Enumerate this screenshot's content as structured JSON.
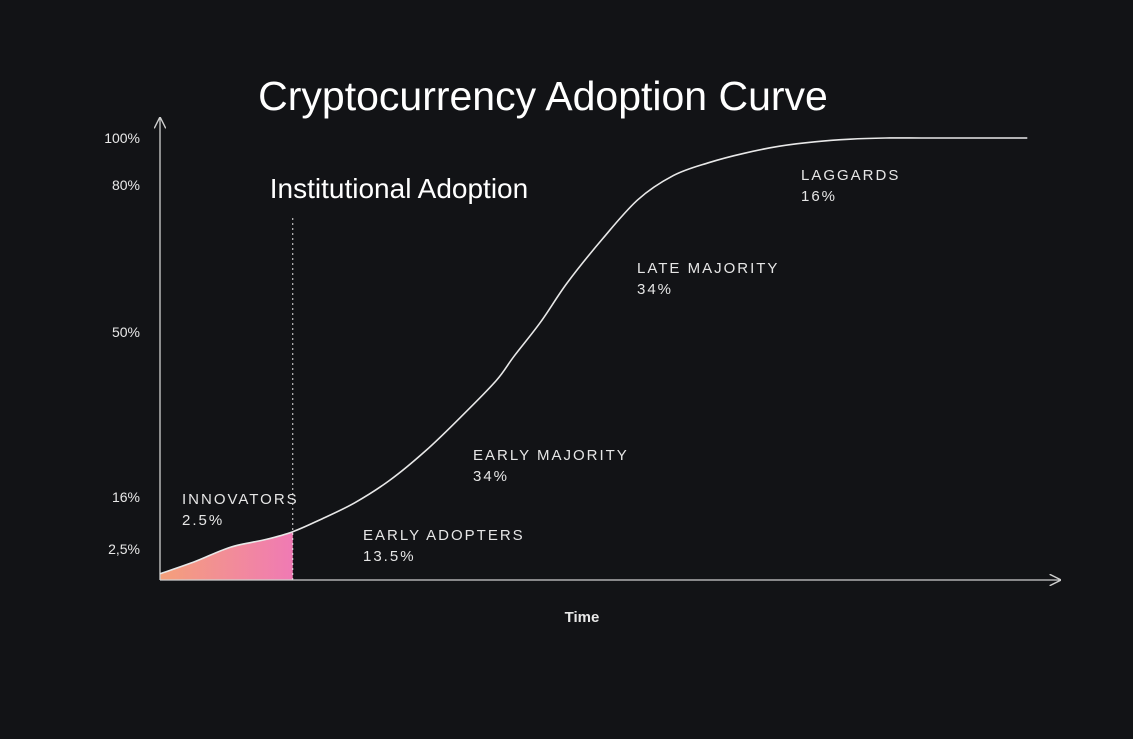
{
  "chart_data": {
    "type": "line",
    "title": "Cryptocurrency Adoption Curve",
    "xlabel": "Time",
    "ylabel": "",
    "y_ticks": [
      "100%",
      "80%",
      "50%",
      "16%",
      "2,5%"
    ],
    "y_tick_values": [
      100,
      80,
      50,
      16,
      2.5
    ],
    "ylim": [
      0,
      100
    ],
    "xlim": [
      0,
      100
    ],
    "series": [
      {
        "x": [
          0,
          4,
          8,
          12,
          15,
          18,
          22,
          26,
          30,
          34,
          38,
          40,
          43,
          46,
          50,
          54,
          58,
          62,
          66,
          70,
          74,
          78,
          82,
          86,
          90,
          94,
          98
        ],
        "y": [
          0.5,
          1.5,
          3,
          5,
          7,
          10,
          14.5,
          19.5,
          25.5,
          32.5,
          40,
          45,
          52,
          60,
          69,
          77,
          84,
          89.5,
          93.5,
          96.5,
          98.4,
          99.5,
          100,
          100,
          100,
          100,
          100
        ]
      }
    ],
    "segments": [
      {
        "name": "INNOVATORS",
        "share": "2.5%"
      },
      {
        "name": "EARLY ADOPTERS",
        "share": "13.5%"
      },
      {
        "name": "EARLY MAJORITY",
        "share": "34%"
      },
      {
        "name": "LATE MAJORITY",
        "share": "34%"
      },
      {
        "name": "LAGGARDS",
        "share": "16%"
      }
    ],
    "annotations": [
      {
        "text": "Institutional Adoption",
        "x": 15
      }
    ],
    "shaded_region": {
      "x_start": 0,
      "x_end": 15,
      "color_start": "#f4a07a",
      "color_end": "#f07ab4"
    },
    "colors": {
      "background": "#121316",
      "curve": "#e8e8e8",
      "text": "#ffffff",
      "axis": "#cfcfcf"
    },
    "grid": false
  }
}
